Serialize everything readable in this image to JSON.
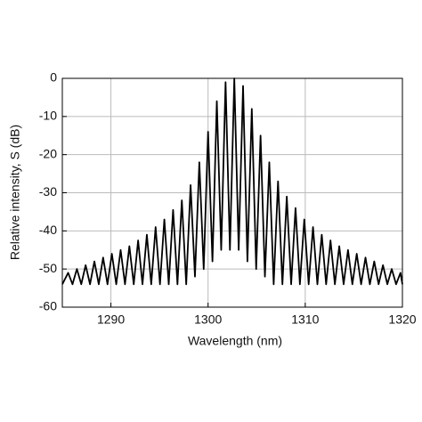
{
  "chart_data": {
    "type": "line",
    "x_label": "Wavelength (nm)",
    "y_label": "Relative intensity, S (dB)",
    "x": [
      1285,
      1285.6,
      1286.05,
      1286.5,
      1286.95,
      1287.4,
      1287.85,
      1288.3,
      1288.75,
      1289.2,
      1289.65,
      1290.1,
      1290.55,
      1291.0,
      1291.45,
      1291.9,
      1292.35,
      1292.8,
      1293.25,
      1293.7,
      1294.15,
      1294.6,
      1295.05,
      1295.5,
      1295.95,
      1296.4,
      1296.85,
      1297.3,
      1297.75,
      1298.2,
      1298.65,
      1299.1,
      1299.55,
      1300.0,
      1300.45,
      1300.9,
      1301.35,
      1301.8,
      1302.25,
      1302.7,
      1303.15,
      1303.6,
      1304.05,
      1304.5,
      1304.95,
      1305.4,
      1305.85,
      1306.3,
      1306.75,
      1307.2,
      1307.65,
      1308.1,
      1308.55,
      1309.0,
      1309.45,
      1309.9,
      1310.35,
      1310.8,
      1311.25,
      1311.7,
      1312.15,
      1312.6,
      1313.05,
      1313.5,
      1313.95,
      1314.4,
      1314.85,
      1315.3,
      1315.75,
      1316.2,
      1316.65,
      1317.1,
      1317.55,
      1318.0,
      1318.45,
      1318.9,
      1319.35,
      1319.8,
      1320
    ],
    "series": [
      {
        "color": "#000000",
        "values": [
          -54,
          -51,
          -54,
          -50,
          -54,
          -49,
          -54,
          -48,
          -54,
          -47,
          -54,
          -46,
          -54,
          -45,
          -54,
          -44,
          -54,
          -42.5,
          -54,
          -41,
          -54,
          -39,
          -54,
          -37,
          -54,
          -34.5,
          -54,
          -32,
          -54,
          -28,
          -52,
          -22,
          -50,
          -14,
          -48,
          -6,
          -45,
          -1,
          -45,
          0,
          -45,
          -2,
          -48,
          -8,
          -50,
          -15,
          -52,
          -22,
          -54,
          -27,
          -54,
          -31,
          -54,
          -34,
          -54,
          -37,
          -54,
          -39,
          -54,
          -41,
          -54,
          -42.5,
          -54,
          -44,
          -54,
          -45,
          -54,
          -46,
          -54,
          -47,
          -54,
          -48,
          -54,
          -49,
          -54,
          -50,
          -54,
          -51,
          -54
        ]
      }
    ],
    "xlim": [
      1285,
      1320
    ],
    "xticks": [
      1290,
      1300,
      1310,
      1320
    ],
    "ylim": [
      -60,
      0
    ],
    "yticks": [
      -60,
      -50,
      -40,
      -30,
      -20,
      -10,
      0
    ],
    "grid": true
  }
}
